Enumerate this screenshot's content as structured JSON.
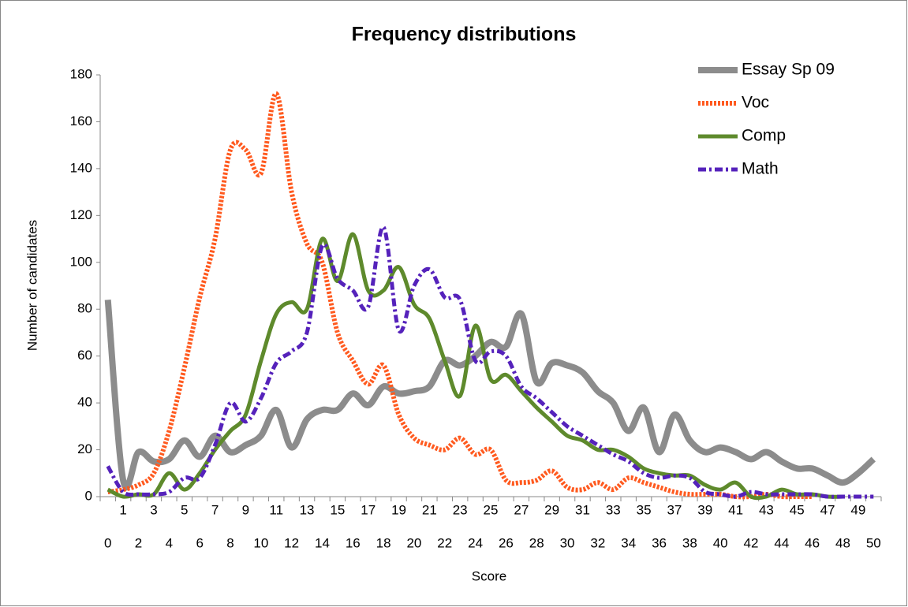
{
  "chart_data": {
    "type": "line",
    "title": "Frequency distributions",
    "x_label": "Score",
    "y_label": "Number of candidates",
    "categories": [
      0,
      1,
      2,
      3,
      4,
      5,
      6,
      7,
      8,
      9,
      10,
      11,
      12,
      13,
      14,
      15,
      16,
      17,
      18,
      19,
      20,
      21,
      22,
      23,
      24,
      25,
      26,
      27,
      28,
      29,
      30,
      31,
      32,
      33,
      34,
      35,
      36,
      37,
      38,
      39,
      40,
      41,
      42,
      43,
      44,
      45,
      46,
      47,
      48,
      49,
      50
    ],
    "ylim": [
      0,
      180
    ],
    "yticks": [
      0,
      20,
      40,
      60,
      80,
      100,
      120,
      140,
      160,
      180
    ],
    "smooth": true,
    "legend": "top-right",
    "series": [
      {
        "name": "Essay Sp 09",
        "color": "#8c8c8c",
        "line_style": "solid",
        "values": [
          84,
          7,
          19,
          15,
          16,
          24,
          17,
          26,
          19,
          22,
          26,
          37,
          21,
          33,
          37,
          37,
          44,
          39,
          47,
          44,
          45,
          47,
          58,
          56,
          60,
          66,
          64,
          78,
          49,
          57,
          56,
          53,
          45,
          40,
          28,
          38,
          19,
          35,
          24,
          19,
          21,
          19,
          16,
          19,
          15,
          12,
          12,
          9,
          6,
          10,
          16
        ]
      },
      {
        "name": "Voc",
        "color": "#ff5a1f",
        "line_style": "dotted",
        "values": [
          2,
          3,
          5,
          10,
          28,
          55,
          85,
          110,
          148,
          148,
          138,
          172,
          130,
          108,
          100,
          70,
          58,
          48,
          56,
          35,
          25,
          22,
          20,
          25,
          18,
          20,
          7,
          6,
          7,
          11,
          4,
          3,
          6,
          3,
          8,
          6,
          4,
          2,
          1,
          1,
          1,
          0,
          0,
          1,
          0,
          0,
          0,
          null,
          null,
          null,
          null
        ]
      },
      {
        "name": "Comp",
        "color": "#5e8a2c",
        "line_style": "solid",
        "values": [
          3,
          0,
          1,
          1,
          10,
          3,
          10,
          20,
          28,
          35,
          58,
          78,
          83,
          80,
          110,
          92,
          112,
          88,
          88,
          98,
          82,
          76,
          58,
          43,
          73,
          50,
          52,
          45,
          38,
          32,
          26,
          24,
          20,
          20,
          17,
          12,
          10,
          9,
          9,
          5,
          3,
          6,
          0,
          0,
          3,
          1,
          1,
          0,
          0,
          null,
          null
        ]
      },
      {
        "name": "Math",
        "color": "#5522bb",
        "line_style": "dashdot",
        "values": [
          13,
          2,
          1,
          1,
          2,
          8,
          8,
          22,
          40,
          32,
          42,
          57,
          62,
          70,
          107,
          93,
          88,
          81,
          115,
          71,
          90,
          97,
          85,
          84,
          58,
          62,
          60,
          47,
          42,
          36,
          30,
          26,
          22,
          18,
          15,
          10,
          8,
          9,
          8,
          2,
          1,
          0,
          2,
          1,
          1,
          1,
          1,
          0,
          0,
          0,
          0
        ]
      }
    ]
  }
}
